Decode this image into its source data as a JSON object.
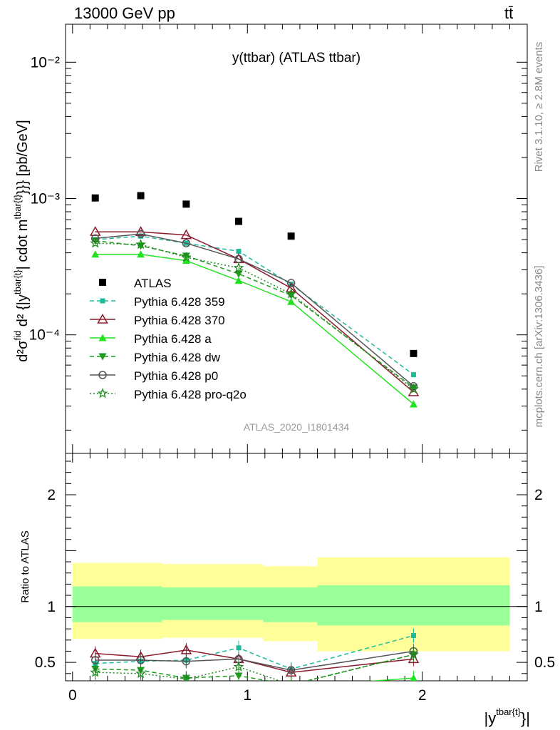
{
  "header": {
    "energy_label": "13000 GeV pp",
    "process_label": "tt̄"
  },
  "side_labels": {
    "rivet": "Rivet 3.1.10, ≥ 2.8M events",
    "mcplots": "mcplots.cern.ch [arXiv:1306.3436]"
  },
  "chart_data": {
    "type": "line",
    "title": "y(ttbar) (ATLAS ttbar)",
    "watermark": "ATLAS_2020_I1801434",
    "ylabel_main": "d²σ^fid / d²{|y^tbar{t}|cdot m^tbar{t}}} [pb/GeV]",
    "ylabel_main_parts": {
      "frac_num": "d²σ",
      "frac_num_sup": "fid",
      "frac_den": "d² {|y",
      "den_sup": "tbar{t}",
      "rest": "| cdot m",
      "rest_sup": "tbar{t}",
      "tail": "}}} [pb/GeV]"
    },
    "ylabel_ratio": "Ratio to ATLAS",
    "xlabel": "|y^tbar{t}}|",
    "xlabel_parts": {
      "base": "|y",
      "sup": "tbar{t}",
      "tail": "}|"
    },
    "main_axis": {
      "yscale": "log",
      "ylim": [
        1.35e-05,
        0.019
      ],
      "major_ticks": [
        0.0001,
        0.001,
        0.01
      ],
      "major_tick_labels": [
        "10⁻⁴",
        "10⁻³",
        "10⁻²"
      ]
    },
    "ratio_axis": {
      "ylim": [
        0.335,
        2.37
      ],
      "ticks": [
        0.5,
        1,
        2
      ],
      "tick_labels": [
        "0.5",
        "1",
        "2"
      ]
    },
    "xlim": [
      -0.04,
      2.6
    ],
    "x_ticks": [
      0,
      1,
      2
    ],
    "x_tick_labels": [
      "0",
      "1",
      "2"
    ],
    "bin_edges": [
      0,
      0.51,
      1.09,
      1.4,
      2.5
    ],
    "bands": {
      "green": [
        [
          0.0,
          0.51,
          0.86,
          1.18
        ],
        [
          0.51,
          1.09,
          0.88,
          1.17
        ],
        [
          1.09,
          1.4,
          0.86,
          1.17
        ],
        [
          1.4,
          2.5,
          0.83,
          1.19
        ]
      ],
      "yellow": [
        [
          0.0,
          0.51,
          0.71,
          1.39
        ],
        [
          0.51,
          1.09,
          0.72,
          1.38
        ],
        [
          1.09,
          1.4,
          0.69,
          1.36
        ],
        [
          1.4,
          2.5,
          0.6,
          1.44
        ]
      ]
    },
    "x": [
      0.13,
      0.39,
      0.65,
      0.95,
      1.25,
      1.95
    ],
    "series": [
      {
        "name": "ATLAS",
        "color": "#000000",
        "marker": "square-filled",
        "dash": "none",
        "values": [
          0.00101,
          0.00105,
          0.00091,
          0.00068,
          0.00053,
          7.3e-05
        ],
        "ratio": [
          1,
          1,
          1,
          1,
          1,
          1
        ]
      },
      {
        "name": "Pythia 6.428 359",
        "color": "#1abc9c",
        "marker": "square-small",
        "dash": "6,4",
        "values": [
          0.0005,
          0.00053,
          0.00047,
          0.00041,
          0.000235,
          5.1e-05
        ],
        "ratio": [
          0.49,
          0.51,
          0.52,
          0.63,
          0.44,
          0.74
        ]
      },
      {
        "name": "Pythia 6.428 370",
        "color": "#8b1a2c",
        "marker": "triangle-open",
        "dash": "none",
        "values": [
          0.00057,
          0.00057,
          0.00054,
          0.00036,
          0.00022,
          3.8e-05
        ],
        "ratio": [
          0.58,
          0.55,
          0.61,
          0.53,
          0.41,
          0.53
        ]
      },
      {
        "name": "Pythia 6.428 a",
        "color": "#22e322",
        "marker": "triangle-filled",
        "dash": "none",
        "values": [
          0.00039,
          0.00039,
          0.00035,
          0.00025,
          0.000175,
          3.1e-05
        ],
        "ratio": [
          0.3,
          0.3,
          0.3,
          0.29,
          0.28,
          0.36
        ]
      },
      {
        "name": "Pythia 6.428 dw",
        "color": "#1d9b1d",
        "marker": "triangle-down",
        "dash": "6,4",
        "values": [
          0.00049,
          0.00045,
          0.00038,
          0.00028,
          0.000195,
          4.1e-05
        ],
        "ratio": [
          0.44,
          0.43,
          0.36,
          0.38,
          0.3,
          0.57
        ]
      },
      {
        "name": "Pythia 6.428 p0",
        "color": "#555555",
        "marker": "circle-open",
        "dash": "none",
        "values": [
          0.00051,
          0.00055,
          0.00047,
          0.00036,
          0.00024,
          4.2e-05
        ],
        "ratio": [
          0.52,
          0.52,
          0.51,
          0.53,
          0.43,
          0.6
        ]
      },
      {
        "name": "Pythia 6.428 pro-q2o",
        "color": "#1f8a1f",
        "marker": "star",
        "dash": "2,3",
        "values": [
          0.00047,
          0.00046,
          0.00037,
          0.00031,
          0.0002,
          4e-05
        ],
        "ratio": [
          0.41,
          0.4,
          0.35,
          0.46,
          0.3,
          0.57
        ]
      }
    ]
  }
}
